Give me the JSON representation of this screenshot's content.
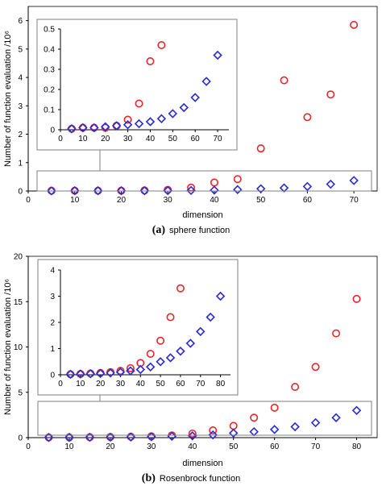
{
  "chart_data": [
    {
      "type": "scatter",
      "caption_letter": "(a)",
      "caption_text": "sphere function",
      "xlabel": "dimension",
      "ylabel": "Number of function evaluation /10⁶",
      "xlim": [
        0,
        75
      ],
      "ylim": [
        0,
        6.5
      ],
      "xticks": [
        0,
        10,
        20,
        30,
        40,
        50,
        60,
        70
      ],
      "yticks": [
        0,
        1,
        2,
        3,
        4,
        5,
        6
      ],
      "grid": false,
      "legend": "none",
      "series": [
        {
          "marker": "circle",
          "color": "#e8262a",
          "x": [
            5,
            10,
            15,
            20,
            25,
            30,
            35,
            40,
            45,
            50,
            55,
            60,
            65,
            70
          ],
          "y": [
            0.01,
            0.01,
            0.01,
            0.01,
            0.02,
            0.04,
            0.12,
            0.3,
            0.42,
            1.5,
            3.9,
            2.6,
            3.4,
            5.85
          ]
        },
        {
          "marker": "diamond",
          "color": "#2b2bd6",
          "x": [
            5,
            10,
            15,
            20,
            25,
            30,
            35,
            40,
            45,
            50,
            55,
            60,
            65,
            70
          ],
          "y": [
            0.005,
            0.01,
            0.01,
            0.01,
            0.01,
            0.015,
            0.02,
            0.03,
            0.05,
            0.08,
            0.11,
            0.16,
            0.24,
            0.37
          ]
        }
      ],
      "inset": {
        "xlim": [
          0,
          75
        ],
        "ylim": [
          0,
          0.5
        ],
        "xticks": [
          0,
          10,
          20,
          30,
          40,
          50,
          60,
          70
        ],
        "yticks": [
          0,
          0.1,
          0.2,
          0.3,
          0.4,
          0.5
        ],
        "ytick_labels": [
          "0",
          "0.1",
          "0.2",
          "0.3",
          "0.4",
          "0.5"
        ],
        "series": [
          {
            "marker": "circle",
            "color": "#e8262a",
            "x": [
              5,
              10,
              15,
              20,
              25,
              30,
              35,
              40,
              45
            ],
            "y": [
              0.005,
              0.01,
              0.01,
              0.01,
              0.02,
              0.05,
              0.13,
              0.34,
              0.42
            ]
          },
          {
            "marker": "diamond",
            "color": "#2b2bd6",
            "x": [
              5,
              10,
              15,
              20,
              25,
              30,
              35,
              40,
              45,
              50,
              55,
              60,
              65,
              70
            ],
            "y": [
              0.005,
              0.01,
              0.01,
              0.015,
              0.02,
              0.025,
              0.03,
              0.04,
              0.055,
              0.08,
              0.11,
              0.16,
              0.24,
              0.37
            ]
          }
        ]
      }
    },
    {
      "type": "scatter",
      "caption_letter": "(b)",
      "caption_text": "Rosenbrock function",
      "xlabel": "dimension",
      "ylabel": "Number of function evaluation /10⁶",
      "xlim": [
        0,
        85
      ],
      "ylim": [
        0,
        20
      ],
      "xticks": [
        0,
        10,
        20,
        30,
        40,
        50,
        60,
        70,
        80
      ],
      "yticks": [
        0,
        5,
        10,
        15,
        20
      ],
      "grid": false,
      "legend": "none",
      "series": [
        {
          "marker": "circle",
          "color": "#e8262a",
          "x": [
            5,
            10,
            15,
            20,
            25,
            30,
            35,
            40,
            45,
            50,
            55,
            60,
            65,
            70,
            75,
            80
          ],
          "y": [
            0.02,
            0.03,
            0.05,
            0.07,
            0.1,
            0.15,
            0.25,
            0.45,
            0.8,
            1.3,
            2.2,
            3.3,
            5.6,
            7.8,
            11.5,
            15.3
          ]
        },
        {
          "marker": "diamond",
          "color": "#2b2bd6",
          "x": [
            5,
            10,
            15,
            20,
            25,
            30,
            35,
            40,
            45,
            50,
            55,
            60,
            65,
            70,
            75,
            80
          ],
          "y": [
            0.02,
            0.03,
            0.04,
            0.05,
            0.07,
            0.1,
            0.15,
            0.2,
            0.3,
            0.5,
            0.65,
            0.9,
            1.2,
            1.65,
            2.2,
            3.0
          ]
        }
      ],
      "inset": {
        "xlim": [
          0,
          85
        ],
        "ylim": [
          0,
          4
        ],
        "xticks": [
          0,
          10,
          20,
          30,
          40,
          50,
          60,
          70,
          80
        ],
        "yticks": [
          0,
          1,
          2,
          3,
          4
        ],
        "ytick_labels": [
          "0",
          "1",
          "2",
          "3",
          "4"
        ],
        "series": [
          {
            "marker": "circle",
            "color": "#e8262a",
            "x": [
              5,
              10,
              15,
              20,
              25,
              30,
              35,
              40,
              45,
              50,
              55,
              60
            ],
            "y": [
              0.02,
              0.03,
              0.05,
              0.07,
              0.1,
              0.15,
              0.25,
              0.45,
              0.8,
              1.3,
              2.2,
              3.3
            ]
          },
          {
            "marker": "diamond",
            "color": "#2b2bd6",
            "x": [
              5,
              10,
              15,
              20,
              25,
              30,
              35,
              40,
              45,
              50,
              55,
              60,
              65,
              70,
              75,
              80
            ],
            "y": [
              0.02,
              0.03,
              0.04,
              0.05,
              0.07,
              0.1,
              0.15,
              0.2,
              0.3,
              0.5,
              0.65,
              0.9,
              1.2,
              1.65,
              2.2,
              3.0
            ]
          }
        ]
      }
    }
  ]
}
